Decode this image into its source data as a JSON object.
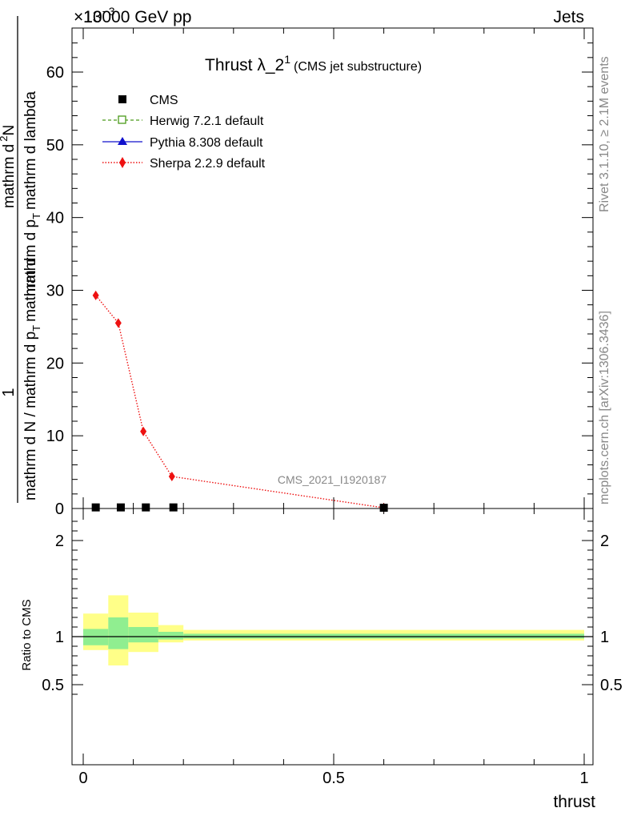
{
  "header": {
    "left": "13000 GeV pp",
    "right": "Jets",
    "exponent": "×10",
    "exponent_power": "−3"
  },
  "side_labels": {
    "rivet": "Rivet 3.1.10, ≥ 2.1M events",
    "mcplots": "mcplots.cern.ch [arXiv:1306.3436]"
  },
  "watermark": "CMS_2021_I1920187",
  "chart_data": [
    {
      "type": "line",
      "title": "Thrust λ_2",
      "title_sup": "1",
      "title_suffix": "(CMS jet substructure)",
      "ylabel_numer": "1",
      "ylabel_denom_1": "mathrm d N / mathrm d p",
      "ylabel_denom_1_sub": "T",
      "ylabel_denom_2": "mathrm d",
      "ylabel_numer_2": "mathrm d",
      "ylabel_sup": "2",
      "ylabel_numer_3": "N",
      "ylabel_denom_3": "mathrm d p",
      "ylabel_denom_3_sub": "T",
      "ylabel_denom_4": "mathrm d lambda",
      "xlim": [
        0,
        1
      ],
      "ylim": [
        0,
        66
      ],
      "yticks": [
        0,
        10,
        20,
        30,
        40,
        50,
        60
      ],
      "legend": [
        "CMS",
        "Herwig 7.2.1 default",
        "Pythia 8.308 default",
        "Sherpa 2.2.9 default"
      ],
      "legend_position": "top-left",
      "colors": {
        "cms": "#000000",
        "herwig": "#4a9a1a",
        "pythia": "#1010cc",
        "sherpa": "#ee1111"
      },
      "series": [
        {
          "name": "CMS",
          "x": [
            0.025,
            0.075,
            0.125,
            0.18,
            0.6
          ],
          "y": [
            0.15,
            0.15,
            0.15,
            0.15,
            0.1
          ]
        },
        {
          "name": "Herwig 7.2.1 default",
          "x": [
            0.025,
            0.075,
            0.125,
            0.18,
            0.6
          ],
          "y": [
            0.15,
            0.15,
            0.15,
            0.15,
            0.1
          ]
        },
        {
          "name": "Pythia 8.308 default",
          "x": [
            0.025,
            0.075,
            0.125,
            0.18,
            0.6
          ],
          "y": [
            0.15,
            0.15,
            0.15,
            0.15,
            0.1
          ]
        },
        {
          "name": "Sherpa 2.2.9 default",
          "x": [
            0.025,
            0.07,
            0.12,
            0.177,
            0.6
          ],
          "y": [
            29.3,
            25.5,
            10.6,
            4.4,
            0.1
          ]
        }
      ]
    },
    {
      "type": "area",
      "ylabel": "Ratio to CMS",
      "xlabel": "thrust",
      "xlim": [
        0,
        1
      ],
      "ylim": [
        0.35,
        2.3
      ],
      "yticks": [
        0.5,
        1,
        2
      ],
      "xticks": [
        0,
        0.5,
        1
      ],
      "xtick_labels": [
        "0",
        "0.5",
        "1"
      ],
      "ytick_labels": [
        "0.5",
        "1",
        "2"
      ],
      "colors": {
        "inner": "#90ee90",
        "outer": "#ffff88"
      },
      "bins": [
        {
          "x0": 0.0,
          "x1": 0.05,
          "inner": [
            0.91,
            1.08
          ],
          "outer": [
            0.86,
            1.24
          ]
        },
        {
          "x0": 0.05,
          "x1": 0.09,
          "inner": [
            0.87,
            1.2
          ],
          "outer": [
            0.7,
            1.43
          ]
        },
        {
          "x0": 0.09,
          "x1": 0.15,
          "inner": [
            0.94,
            1.1
          ],
          "outer": [
            0.84,
            1.25
          ]
        },
        {
          "x0": 0.15,
          "x1": 0.2,
          "inner": [
            0.97,
            1.05
          ],
          "outer": [
            0.94,
            1.12
          ]
        },
        {
          "x0": 0.2,
          "x1": 1.0,
          "inner": [
            0.98,
            1.03
          ],
          "outer": [
            0.96,
            1.07
          ]
        }
      ]
    }
  ]
}
